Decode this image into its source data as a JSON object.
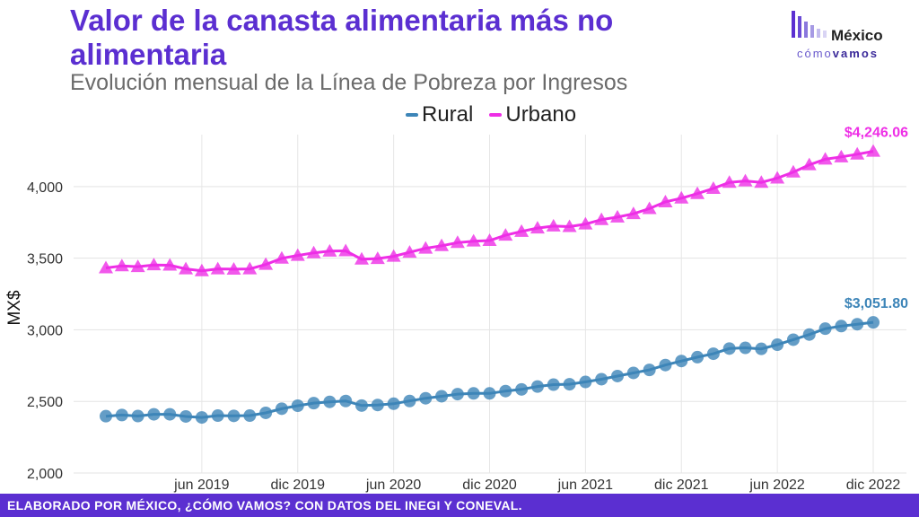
{
  "header": {
    "title": "Valor de la canasta alimentaria más no alimentaria",
    "subtitle": "Evolución mensual de la Línea de Pobreza por Ingresos"
  },
  "logo": {
    "name_top": "México",
    "name_bottom_a": "cómo",
    "name_bottom_b": "vamos"
  },
  "footer": {
    "text": "ELABORADO POR MÉXICO, ¿CÓMO VAMOS? CON DATOS DEL INEGI Y CONEVAL."
  },
  "colors": {
    "rural": "#3d85b8",
    "urbano": "#ee2ee6",
    "title": "#5b2fd1"
  },
  "chart_data": {
    "type": "line",
    "title": "Valor de la canasta alimentaria más no alimentaria",
    "subtitle": "Evolución mensual de la Línea de Pobreza por Ingresos",
    "ylabel": "MX$",
    "xlabel": "",
    "ylim": [
      2000,
      4300
    ],
    "yticks": [
      2000,
      2500,
      3000,
      3500,
      4000
    ],
    "ytick_labels": [
      "2,000",
      "2,500",
      "3,000",
      "3,500",
      "4,000"
    ],
    "xticks": [
      "2019-06",
      "2019-12",
      "2020-06",
      "2020-12",
      "2021-06",
      "2021-12",
      "2022-06",
      "2022-12"
    ],
    "xtick_labels": [
      "jun 2019",
      "dic 2019",
      "jun 2020",
      "dic 2020",
      "jun 2021",
      "dic 2021",
      "jun 2022",
      "dic 2022"
    ],
    "grid": true,
    "legend_position": "top",
    "x": [
      "2018-12",
      "2019-01",
      "2019-02",
      "2019-03",
      "2019-04",
      "2019-05",
      "2019-06",
      "2019-07",
      "2019-08",
      "2019-09",
      "2019-10",
      "2019-11",
      "2019-12",
      "2020-01",
      "2020-02",
      "2020-03",
      "2020-04",
      "2020-05",
      "2020-06",
      "2020-07",
      "2020-08",
      "2020-09",
      "2020-10",
      "2020-11",
      "2020-12",
      "2021-01",
      "2021-02",
      "2021-03",
      "2021-04",
      "2021-05",
      "2021-06",
      "2021-07",
      "2021-08",
      "2021-09",
      "2021-10",
      "2021-11",
      "2021-12",
      "2022-01",
      "2022-02",
      "2022-03",
      "2022-04",
      "2022-05",
      "2022-06",
      "2022-07",
      "2022-08",
      "2022-09",
      "2022-10",
      "2022-11",
      "2022-12"
    ],
    "series": [
      {
        "name": "Rural",
        "color": "#3d85b8",
        "marker": "circle",
        "values": [
          2397,
          2405,
          2398,
          2410,
          2410,
          2395,
          2388,
          2401,
          2399,
          2401,
          2420,
          2449,
          2470,
          2488,
          2497,
          2503,
          2471,
          2475,
          2484,
          2503,
          2522,
          2536,
          2551,
          2556,
          2556,
          2572,
          2584,
          2604,
          2617,
          2620,
          2636,
          2655,
          2677,
          2699,
          2720,
          2754,
          2782,
          2809,
          2833,
          2869,
          2874,
          2867,
          2896,
          2931,
          2967,
          3008,
          3026,
          3039,
          3052
        ],
        "last_label": "$3,051.80"
      },
      {
        "name": "Urbano",
        "color": "#ee2ee6",
        "marker": "triangle",
        "values": [
          3432,
          3446,
          3441,
          3453,
          3451,
          3425,
          3412,
          3425,
          3423,
          3425,
          3456,
          3499,
          3519,
          3537,
          3549,
          3551,
          3493,
          3497,
          3513,
          3541,
          3569,
          3587,
          3609,
          3619,
          3623,
          3660,
          3687,
          3710,
          3724,
          3720,
          3738,
          3769,
          3787,
          3810,
          3846,
          3893,
          3919,
          3951,
          3987,
          4029,
          4039,
          4029,
          4059,
          4101,
          4152,
          4191,
          4207,
          4226,
          4246.06
        ],
        "last_label": "$4,246.06"
      }
    ]
  }
}
